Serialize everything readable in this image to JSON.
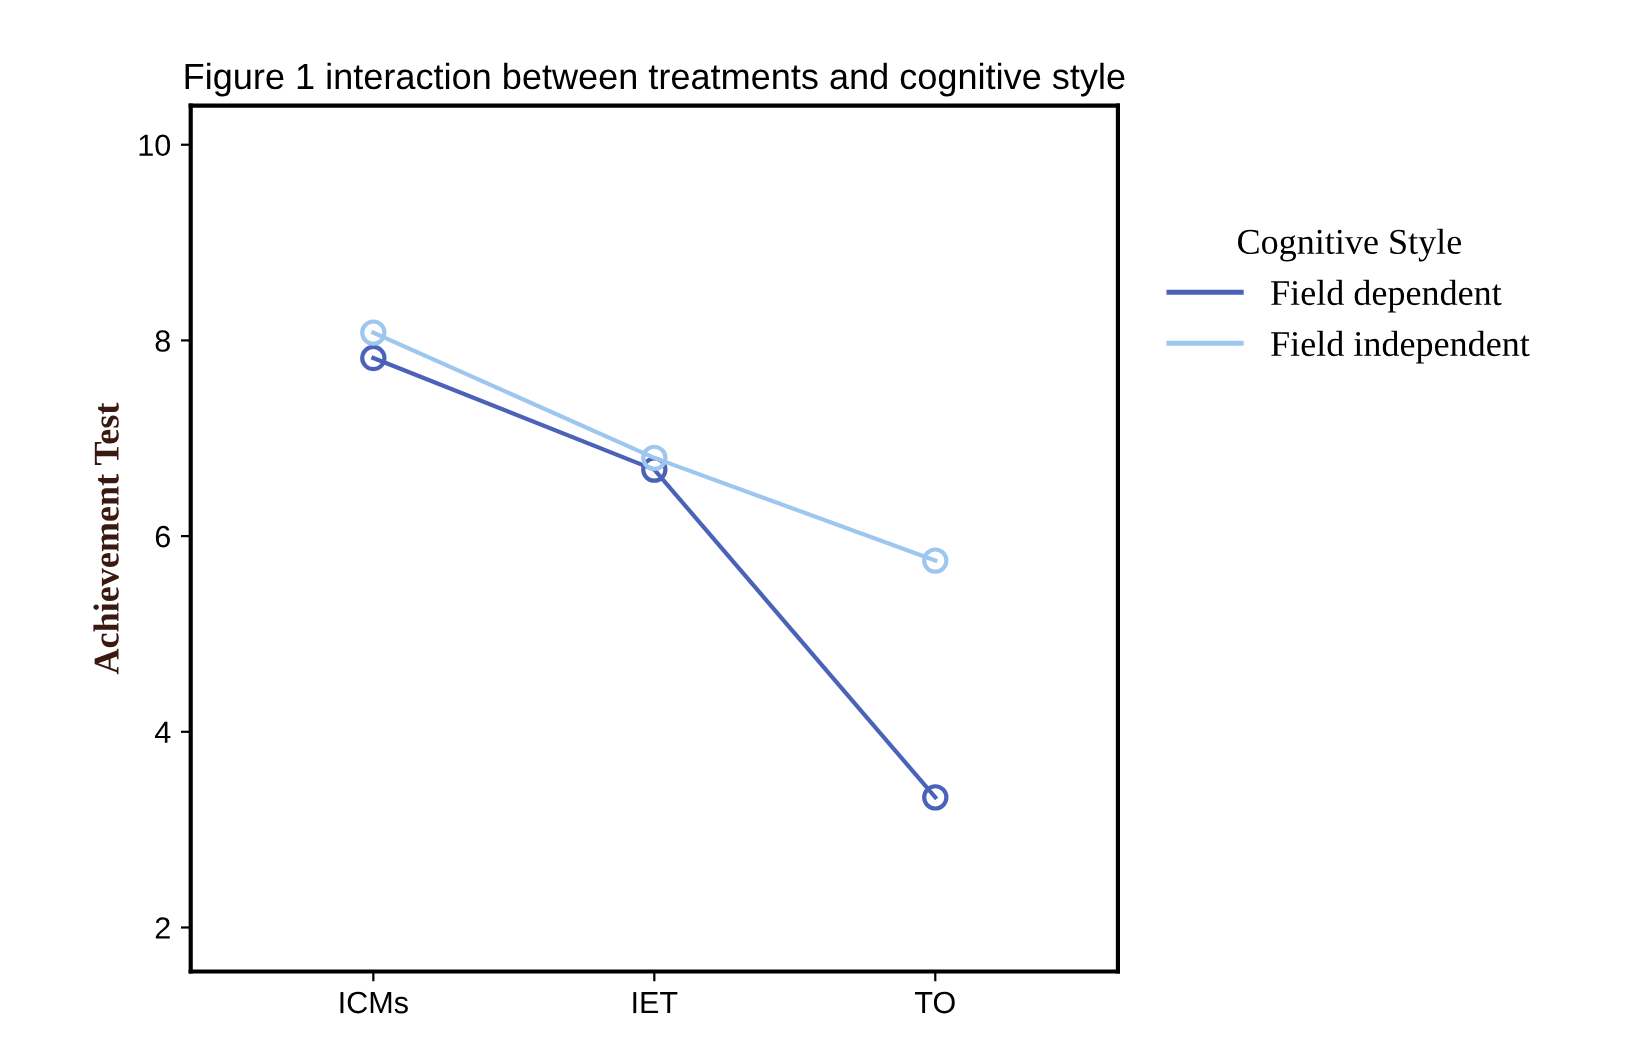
{
  "chart_data": {
    "type": "line",
    "title": "Figure 1 interaction between treatments and cognitive style",
    "ylabel": "Achievement Test",
    "legend_title": "Cognitive Style",
    "categories": [
      "ICMs",
      "IET",
      "TO"
    ],
    "series": [
      {
        "name": "Field dependent",
        "color": "#4a62b8",
        "values": [
          7.82,
          6.68,
          3.33
        ]
      },
      {
        "name": "Field independent",
        "color": "#9ec7f0",
        "values": [
          8.08,
          6.8,
          5.75
        ]
      }
    ],
    "ylim": [
      1.55,
      10.4
    ],
    "yticks": [
      2,
      4,
      6,
      8,
      10
    ],
    "grid": false,
    "legend": "right",
    "marker": "circle",
    "line_style": "solid"
  }
}
